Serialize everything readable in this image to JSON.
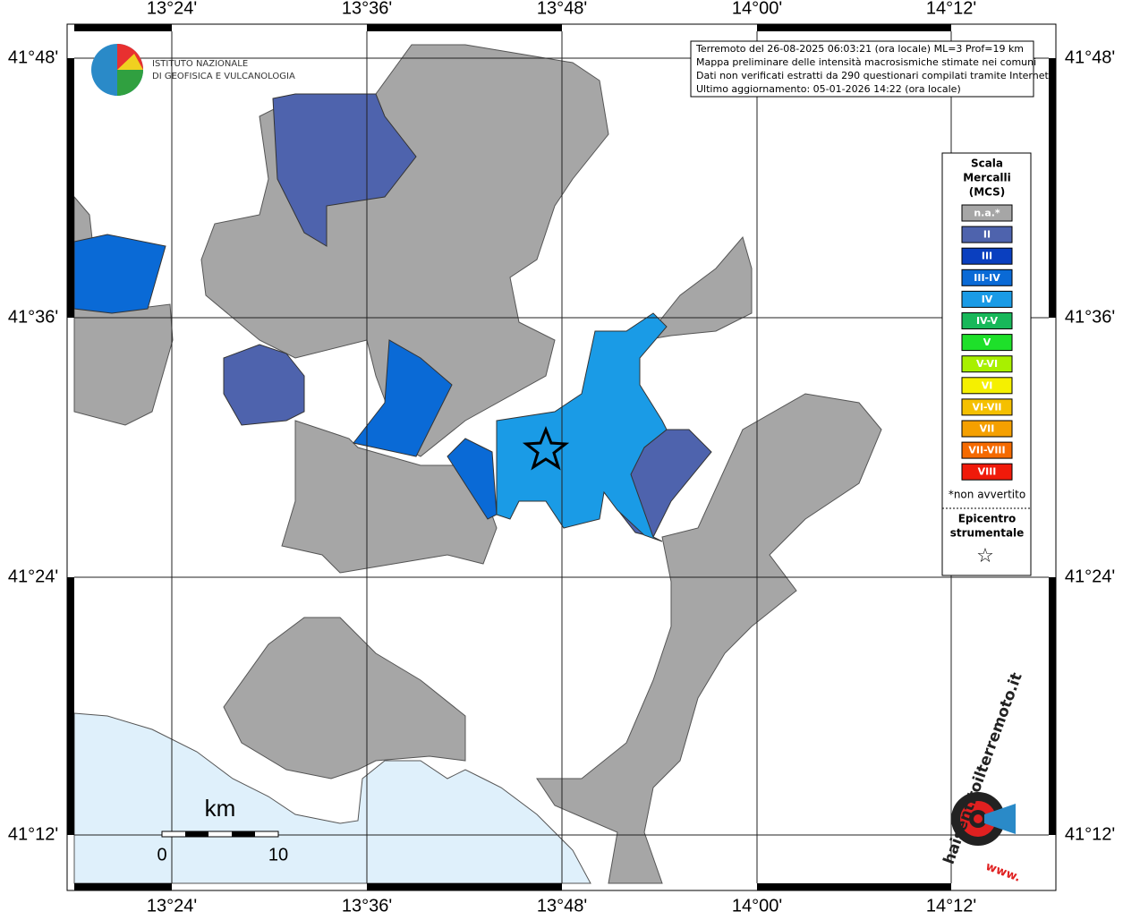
{
  "logo": {
    "line1": "ISTITUTO NAZIONALE",
    "line2": "DI GEOFISICA E VULCANOLOGIA"
  },
  "info": [
    "Terremoto del 26-08-2025 06:03:21 (ora locale) ML=3 Prof=19 km",
    "Mappa preliminare delle intensità macrosismiche stimate nei comuni",
    "Dati non verificati estratti da 290 questionari compilati tramite Internet.",
    "Ultimo aggiornamento: 05-01-2026 14:22 (ora locale)"
  ],
  "map": {
    "lon_labels": [
      "13°24'",
      "13°36'",
      "13°48'",
      "14°00'",
      "14°12'"
    ],
    "lat_labels": [
      "41°48'",
      "41°36'",
      "41°24'",
      "41°12'"
    ]
  },
  "legend": {
    "title": [
      "Scala",
      "Mercalli",
      "(MCS)"
    ],
    "items": [
      {
        "label": "n.a.*",
        "color": "#a6a6a6"
      },
      {
        "label": "II",
        "color": "#4e63ad"
      },
      {
        "label": "III",
        "color": "#0a3fbf"
      },
      {
        "label": "III-IV",
        "color": "#0a6ad6"
      },
      {
        "label": "IV",
        "color": "#1a9be6"
      },
      {
        "label": "IV-V",
        "color": "#18b85a"
      },
      {
        "label": "V",
        "color": "#1ee02a"
      },
      {
        "label": "V-VI",
        "color": "#a8f000"
      },
      {
        "label": "VI",
        "color": "#f5f000"
      },
      {
        "label": "VI-VII",
        "color": "#f5c000"
      },
      {
        "label": "VII",
        "color": "#f5a000"
      },
      {
        "label": "VII-VIII",
        "color": "#f56a00"
      },
      {
        "label": "VIII",
        "color": "#f01a0a"
      }
    ],
    "note": "*non avvertito",
    "epicenter": [
      "Epicentro",
      "strumentale"
    ],
    "star": "☆"
  },
  "scale": {
    "unit": "km",
    "start": "0",
    "end": "10"
  },
  "badge": {
    "text": "haisentitoilterremoto.it",
    "www": "www."
  }
}
